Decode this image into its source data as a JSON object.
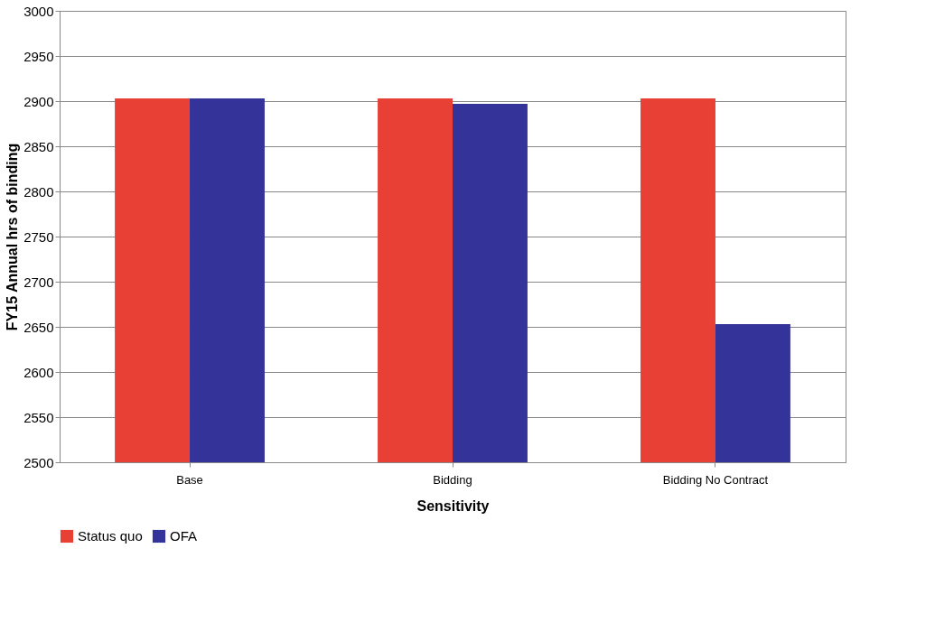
{
  "chart_data": {
    "type": "bar",
    "xlabel": "Sensitivity",
    "ylabel": "FY15 Annual hrs of binding",
    "categories": [
      "Base",
      "Bidding",
      "Bidding No Contract"
    ],
    "series": [
      {
        "name": "Status quo",
        "color": "#e84034",
        "values": [
          2903,
          2903,
          2903
        ]
      },
      {
        "name": "OFA",
        "color": "#333399",
        "values": [
          2903,
          2897,
          2653
        ]
      }
    ],
    "ylim": [
      2500,
      3000
    ],
    "yticks": [
      2500,
      2550,
      2600,
      2650,
      2700,
      2750,
      2800,
      2850,
      2900,
      2950,
      3000
    ],
    "grid": "y",
    "legend": "bottom"
  }
}
